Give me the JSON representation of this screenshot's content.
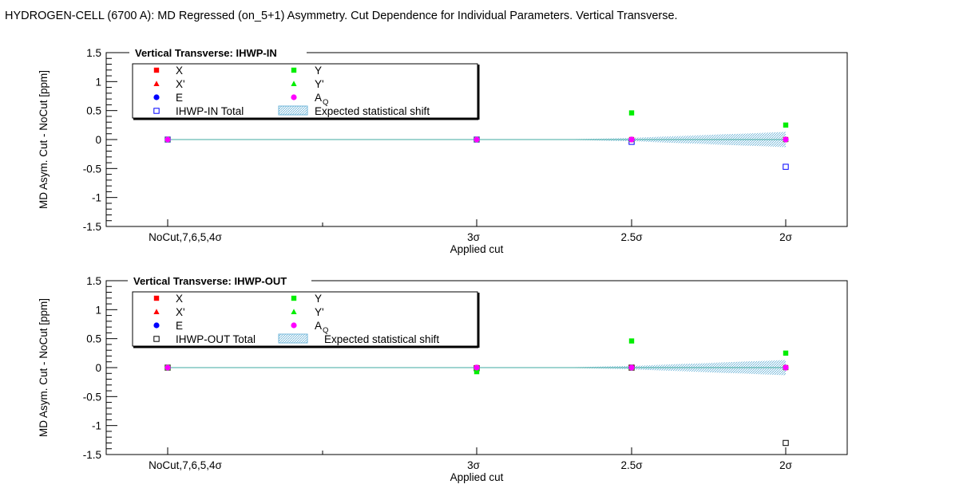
{
  "title": "HYDROGEN-CELL (6700 A): MD Regressed (on_5+1) Asymmetry. Cut Dependence for Individual Parameters. Vertical Transverse.",
  "chart_data": [
    {
      "type": "scatter",
      "title": "Vertical Transverse: IHWP-IN",
      "xlabel": "Applied cut",
      "ylabel": "MD Asym. Cut - NoCut [ppm]",
      "ylim": [
        -1.5,
        1.5
      ],
      "y_ticks": [
        "1.5",
        "1",
        "0.5",
        "0",
        "-0.5",
        "-1",
        "-1.5"
      ],
      "y_tick_values": [
        1.5,
        1,
        0.5,
        0,
        -0.5,
        -1,
        -1.5
      ],
      "categories": [
        "NoCut,7,6,5,4σ",
        "3σ",
        "2.5σ",
        "2σ"
      ],
      "legend": [
        {
          "name": "X",
          "color": "#ff0000",
          "marker": "square"
        },
        {
          "name": "Y",
          "color": "#00ee00",
          "marker": "square"
        },
        {
          "name": "X'",
          "color": "#ff0000",
          "marker": "triangle"
        },
        {
          "name": "Y'",
          "color": "#00ee00",
          "marker": "triangle"
        },
        {
          "name": "E",
          "color": "#0000ff",
          "marker": "circle"
        },
        {
          "name": "A",
          "sub": "Q",
          "color": "#ff00ff",
          "marker": "circle"
        },
        {
          "name": "IHWP-IN Total",
          "color": "#0000ff",
          "marker": "open-square"
        },
        {
          "name": "Expected statistical shift",
          "color": "#6fb6d9",
          "marker": "band"
        }
      ],
      "series": [
        {
          "name": "X",
          "values": [
            0,
            0,
            0,
            0
          ]
        },
        {
          "name": "X'",
          "values": [
            0,
            0,
            0,
            0
          ]
        },
        {
          "name": "E",
          "values": [
            0,
            0,
            0,
            0
          ]
        },
        {
          "name": "Y",
          "values": [
            0,
            0,
            0.46,
            0.25
          ]
        },
        {
          "name": "Y'",
          "values": [
            0,
            0,
            0,
            0
          ]
        },
        {
          "name": "A_Q",
          "values": [
            0,
            0,
            0,
            0
          ]
        },
        {
          "name": "IHWP-IN Total",
          "values": [
            0,
            0,
            -0.04,
            -0.47
          ]
        }
      ],
      "expected_shift": {
        "half_width": [
          0,
          0,
          0.03,
          0.13
        ]
      }
    },
    {
      "type": "scatter",
      "title": "Vertical Transverse: IHWP-OUT",
      "xlabel": "Applied cut",
      "ylabel": "MD Asym. Cut - NoCut [ppm]",
      "ylim": [
        -1.5,
        1.5
      ],
      "y_ticks": [
        "1.5",
        "1",
        "0.5",
        "0",
        "-0.5",
        "-1",
        "-1.5"
      ],
      "y_tick_values": [
        1.5,
        1,
        0.5,
        0,
        -0.5,
        -1,
        -1.5
      ],
      "categories": [
        "NoCut,7,6,5,4σ",
        "3σ",
        "2.5σ",
        "2σ"
      ],
      "legend": [
        {
          "name": "X",
          "color": "#ff0000",
          "marker": "square"
        },
        {
          "name": "Y",
          "color": "#00ee00",
          "marker": "square"
        },
        {
          "name": "X'",
          "color": "#ff0000",
          "marker": "triangle"
        },
        {
          "name": "Y'",
          "color": "#00ee00",
          "marker": "triangle"
        },
        {
          "name": "E",
          "color": "#0000ff",
          "marker": "circle"
        },
        {
          "name": "A",
          "sub": "Q",
          "color": "#ff00ff",
          "marker": "circle"
        },
        {
          "name": "IHWP-OUT Total",
          "color": "#000000",
          "marker": "open-square"
        },
        {
          "name": "Expected statistical shift",
          "color": "#6fb6d9",
          "marker": "band"
        }
      ],
      "series": [
        {
          "name": "X",
          "values": [
            0,
            0,
            0,
            0
          ]
        },
        {
          "name": "X'",
          "values": [
            0,
            0,
            0,
            0
          ]
        },
        {
          "name": "E",
          "values": [
            0,
            0,
            0,
            0
          ]
        },
        {
          "name": "Y",
          "values": [
            0,
            -0.07,
            0.46,
            0.25
          ]
        },
        {
          "name": "Y'",
          "values": [
            0,
            0,
            0,
            0
          ]
        },
        {
          "name": "A_Q",
          "values": [
            0,
            0,
            0,
            0
          ]
        },
        {
          "name": "IHWP-OUT Total",
          "values": [
            0,
            -0.01,
            0,
            -1.3
          ]
        }
      ],
      "expected_shift": {
        "half_width": [
          0,
          0,
          0.03,
          0.13
        ]
      }
    }
  ],
  "colors": {
    "X": "#ff0000",
    "Y": "#00ee00",
    "E": "#0000ff",
    "A_Q": "#ff00ff",
    "in_total": "#0000ff",
    "out_total": "#000000",
    "zero_line": "#3fa9a0",
    "band": "#6fb6d9"
  }
}
